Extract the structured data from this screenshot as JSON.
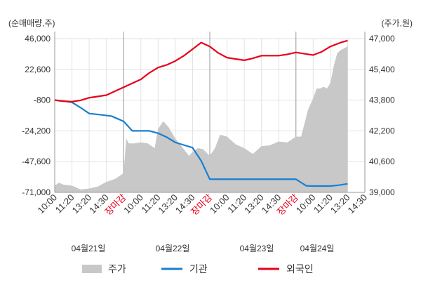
{
  "chart_data": {
    "type": "line",
    "left_axis": {
      "unit_label": "(순매매량,주)",
      "ylim": [
        -71000,
        46000
      ],
      "ticks": [
        46000,
        22600,
        -800,
        -24200,
        -47600,
        -71000
      ],
      "tick_labels": [
        "46,000",
        "22,600",
        "-800",
        "-24,200",
        "-47,600",
        "-71,000"
      ]
    },
    "right_axis": {
      "unit_label": "(주가,원)",
      "ylim": [
        39000,
        47000
      ],
      "ticks": [
        47000,
        45400,
        43800,
        42200,
        40600,
        39000
      ],
      "tick_labels": [
        "47,000",
        "45,400",
        "43,800",
        "42,200",
        "40,600",
        "39,000"
      ]
    },
    "x_tick_labels": [
      {
        "text": "10:00",
        "red": false
      },
      {
        "text": "11:20",
        "red": false
      },
      {
        "text": "13:20",
        "red": false
      },
      {
        "text": "14:30",
        "red": false
      },
      {
        "text": "장마감",
        "red": true
      },
      {
        "text": "10:00",
        "red": false
      },
      {
        "text": "11:20",
        "red": false
      },
      {
        "text": "13:20",
        "red": false
      },
      {
        "text": "14:30",
        "red": false
      },
      {
        "text": "장마감",
        "red": true
      },
      {
        "text": "10:00",
        "red": false
      },
      {
        "text": "11:20",
        "red": false
      },
      {
        "text": "13:20",
        "red": false
      },
      {
        "text": "14:30",
        "red": false
      },
      {
        "text": "장마감",
        "red": true
      },
      {
        "text": "10:00",
        "red": false
      },
      {
        "text": "11:20",
        "red": false
      },
      {
        "text": "13:20",
        "red": false
      },
      {
        "text": "14:30",
        "red": false
      }
    ],
    "date_labels": [
      "04월21일",
      "04월22일",
      "04월23일",
      "04월24일"
    ],
    "grid": true,
    "legend_position": "bottom",
    "colors": {
      "price": "#c8c8c8",
      "institution": "#1a7fcf",
      "foreign": "#e8001c",
      "close_label": "#e8001c",
      "grid": "#e2e2e2",
      "text": "#333333"
    },
    "series": [
      {
        "name": "주가",
        "axis": "right",
        "style": "area",
        "x": [
          0,
          0.25,
          0.5,
          1,
          1.5,
          2,
          2.5,
          3,
          3.5,
          4,
          4.15,
          4.3,
          4.6,
          5,
          5.4,
          5.8,
          6,
          6.3,
          6.6,
          7,
          7.4,
          7.8,
          8,
          8.3,
          8.6,
          9,
          9.3,
          9.6,
          10,
          10.5,
          11,
          11.5,
          12,
          12.5,
          13,
          13.5,
          14,
          14.3,
          14.5,
          14.7,
          15,
          15.2,
          15.4,
          15.6,
          15.8,
          16,
          16.2,
          16.4,
          16.6,
          16.8,
          17
        ],
        "values": [
          39350,
          39500,
          39400,
          39350,
          39150,
          39200,
          39300,
          39550,
          39700,
          40000,
          41800,
          41550,
          41550,
          41600,
          41550,
          41300,
          42300,
          42700,
          42400,
          41800,
          41350,
          40900,
          41100,
          41300,
          41250,
          40900,
          41300,
          42000,
          41900,
          41500,
          41300,
          41000,
          41400,
          41450,
          41650,
          41600,
          41900,
          41900,
          42600,
          43300,
          43900,
          44400,
          44400,
          44500,
          44400,
          44700,
          45600,
          46250,
          46400,
          46500,
          46600
        ]
      },
      {
        "name": "기관",
        "axis": "left",
        "style": "line",
        "x": [
          0,
          0.5,
          1,
          1.5,
          2,
          2.7,
          3.3,
          4,
          4.5,
          5,
          5.5,
          6,
          6.5,
          7,
          7.5,
          8,
          8.5,
          9,
          9.5,
          10,
          10.5,
          11,
          11.5,
          12,
          12.5,
          13,
          13.5,
          14,
          14.3,
          14.6,
          15,
          15.5,
          16,
          16.5,
          17
        ],
        "values": [
          -800,
          -1500,
          -2500,
          -6500,
          -11000,
          -12000,
          -13000,
          -17000,
          -24200,
          -24200,
          -24200,
          -26000,
          -29000,
          -33000,
          -35000,
          -37000,
          -47000,
          -61000,
          -61000,
          -61000,
          -61000,
          -61000,
          -61000,
          -61000,
          -61000,
          -61000,
          -61000,
          -61000,
          -63500,
          -66000,
          -66200,
          -66200,
          -66200,
          -65500,
          -64500
        ]
      },
      {
        "name": "외국인",
        "axis": "left",
        "style": "line",
        "x": [
          0,
          0.5,
          1,
          1.5,
          2,
          2.5,
          3,
          3.5,
          4,
          4.5,
          5,
          5.5,
          6,
          6.5,
          7,
          7.5,
          8,
          8.5,
          9,
          9.5,
          10,
          10.5,
          11,
          11.5,
          12,
          12.5,
          13,
          13.5,
          14,
          14.5,
          15,
          15.5,
          16,
          16.3,
          16.6,
          17
        ],
        "values": [
          -800,
          -1600,
          -2000,
          -1000,
          1000,
          2000,
          3000,
          6000,
          9000,
          12000,
          15000,
          20000,
          24000,
          26000,
          29000,
          33000,
          38000,
          43000,
          40000,
          35000,
          31500,
          30500,
          29500,
          31000,
          33000,
          33000,
          33000,
          34000,
          35500,
          34500,
          33500,
          36000,
          40000,
          41500,
          43000,
          44500
        ]
      }
    ]
  }
}
